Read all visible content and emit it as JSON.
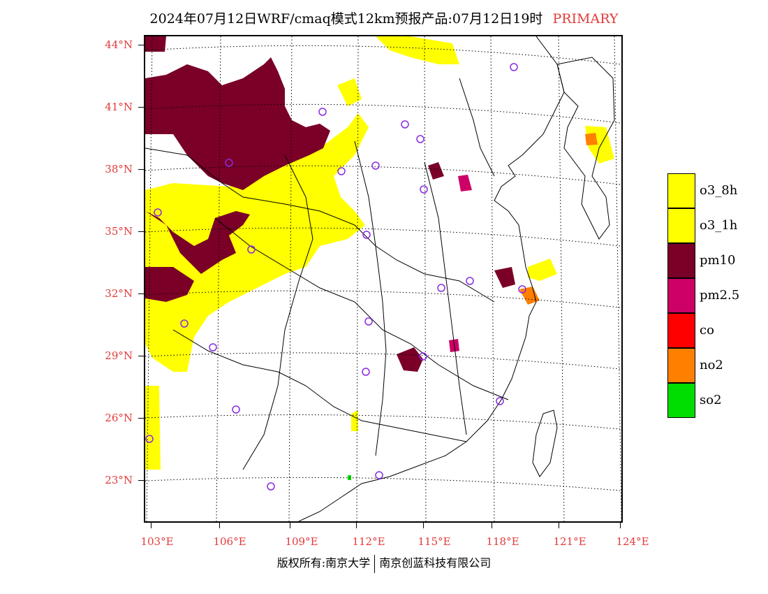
{
  "title": "2024年07月12日WRF/cmaq模式12km预报产品:07月12日19时",
  "title_tag": "PRIMARY",
  "colors": {
    "o3_8h": "#ffff00",
    "o3_1h": "#ffff00",
    "pm10": "#7a0028",
    "pm25": "#cc0066",
    "co": "#ff0000",
    "no2": "#ff7f00",
    "so2": "#00dd00",
    "label_red": "#e33a3a",
    "station_circle": "#8a2be2"
  },
  "lat_labels": [
    "44°N",
    "41°N",
    "38°N",
    "35°N",
    "32°N",
    "29°N",
    "26°N",
    "23°N"
  ],
  "lon_labels": [
    "103°E",
    "106°E",
    "109°E",
    "112°E",
    "115°E",
    "118°E",
    "121°E",
    "124°E"
  ],
  "legend": [
    {
      "label": "o3_8h",
      "color": "#ffff00"
    },
    {
      "label": "o3_1h",
      "color": "#ffff00"
    },
    {
      "label": "pm10",
      "color": "#7a0028"
    },
    {
      "label": "pm2.5",
      "color": "#cc0066"
    },
    {
      "label": "co",
      "color": "#ff0000"
    },
    {
      "label": "no2",
      "color": "#ff7f00"
    },
    {
      "label": "so2",
      "color": "#00dd00"
    }
  ],
  "footer": {
    "left": "版权所有:南京大学",
    "right": "南京创蓝科技有限公司"
  }
}
